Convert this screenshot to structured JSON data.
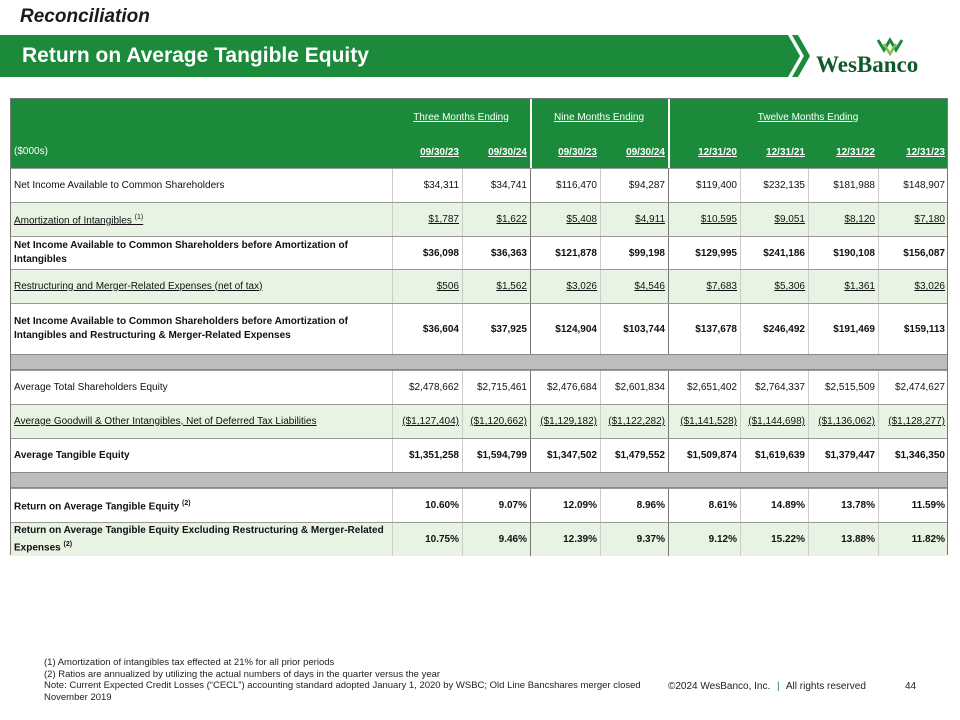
{
  "header": {
    "section": "Reconciliation",
    "title": "Return on Average Tangible Equity",
    "logo": "WesBanco"
  },
  "table": {
    "unit": "($000s)",
    "groups": [
      "Three Months Ending",
      "Nine Months Ending",
      "Twelve Months Ending"
    ],
    "columns": [
      "09/30/23",
      "09/30/24",
      "09/30/23",
      "09/30/24",
      "12/31/20",
      "12/31/21",
      "12/31/22",
      "12/31/23"
    ],
    "rows": [
      {
        "label": "Net Income Available to Common Shareholders",
        "values": [
          "$34,311",
          "$34,741",
          "$116,470",
          "$94,287",
          "$119,400",
          "$232,135",
          "$181,988",
          "$148,907"
        ]
      },
      {
        "label": "Amortization of Intangibles",
        "note": "(1)",
        "values": [
          "$1,787",
          "$1,622",
          "$5,408",
          "$4,911",
          "$10,595",
          "$9,051",
          "$8,120",
          "$7,180"
        ]
      },
      {
        "label": "Net Income Available to Common Shareholders before Amortization of Intangibles",
        "values": [
          "$36,098",
          "$36,363",
          "$121,878",
          "$99,198",
          "$129,995",
          "$241,186",
          "$190,108",
          "$156,087"
        ]
      },
      {
        "label": "Restructuring and Merger-Related Expenses (net of tax)",
        "values": [
          "$506",
          "$1,562",
          "$3,026",
          "$4,546",
          "$7,683",
          "$5,306",
          "$1,361",
          "$3,026"
        ]
      },
      {
        "label": "Net Income Available to Common Shareholders before Amortization of Intangibles and Restructuring & Merger-Related Expenses",
        "values": [
          "$36,604",
          "$37,925",
          "$124,904",
          "$103,744",
          "$137,678",
          "$246,492",
          "$191,469",
          "$159,113"
        ]
      },
      {
        "label": "Average Total Shareholders Equity",
        "values": [
          "$2,478,662",
          "$2,715,461",
          "$2,476,684",
          "$2,601,834",
          "$2,651,402",
          "$2,764,337",
          "$2,515,509",
          "$2,474,627"
        ]
      },
      {
        "label": "Average Goodwill & Other Intangibles, Net of Deferred Tax Liabilities",
        "values": [
          "($1,127,404)",
          "($1,120,662)",
          "($1,129,182)",
          "($1,122,282)",
          "($1,141,528)",
          "($1,144,698)",
          "($1,136,062)",
          "($1,128,277)"
        ]
      },
      {
        "label": "Average Tangible Equity",
        "values": [
          "$1,351,258",
          "$1,594,799",
          "$1,347,502",
          "$1,479,552",
          "$1,509,874",
          "$1,619,639",
          "$1,379,447",
          "$1,346,350"
        ]
      },
      {
        "label": "Return on Average Tangible Equity",
        "note": "(2)",
        "values": [
          "10.60%",
          "9.07%",
          "12.09%",
          "8.96%",
          "8.61%",
          "14.89%",
          "13.78%",
          "11.59%"
        ]
      },
      {
        "label": "Return on Average Tangible Equity Excluding Restructuring & Merger-Related Expenses",
        "note": "(2)",
        "values": [
          "10.75%",
          "9.46%",
          "12.39%",
          "9.37%",
          "9.12%",
          "15.22%",
          "13.88%",
          "11.82%"
        ]
      }
    ]
  },
  "footnotes": [
    "(1) Amortization of intangibles tax effected at 21% for all prior periods",
    "(2) Ratios are annualized by utilizing the actual numbers of days in the quarter versus the year",
    "Note: Current Expected Credit Losses (“CECL”) accounting standard adopted January 1, 2020 by WSBC; Old Line Bancshares merger closed November 2019"
  ],
  "footer": {
    "copyright": "©2024 WesBanco, Inc.",
    "rights": "All rights reserved",
    "page": "44"
  }
}
